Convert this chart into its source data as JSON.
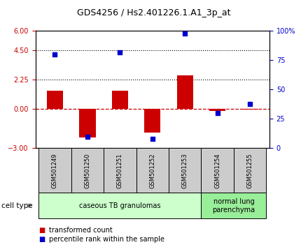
{
  "title": "GDS4256 / Hs2.401226.1.A1_3p_at",
  "samples": [
    "GSM501249",
    "GSM501250",
    "GSM501251",
    "GSM501252",
    "GSM501253",
    "GSM501254",
    "GSM501255"
  ],
  "transformed_counts": [
    1.4,
    -2.2,
    1.4,
    -1.8,
    2.6,
    -0.15,
    -0.05
  ],
  "percentile_ranks": [
    80,
    10,
    82,
    8,
    98,
    30,
    38
  ],
  "ylim_left": [
    -3,
    6
  ],
  "ylim_right": [
    0,
    100
  ],
  "yticks_left": [
    -3,
    0,
    2.25,
    4.5,
    6
  ],
  "yticks_right": [
    0,
    25,
    50,
    75,
    100
  ],
  "hlines_dotted": [
    2.25,
    4.5
  ],
  "hline_dashed_zero": 0,
  "bar_color": "#cc0000",
  "dot_color": "#0000cc",
  "zero_line_color": "#cc0000",
  "cell_type_groups": [
    {
      "label": "caseous TB granulomas",
      "indices": [
        0,
        1,
        2,
        3,
        4
      ],
      "color": "#ccffcc"
    },
    {
      "label": "normal lung\nparenchyma",
      "indices": [
        5,
        6
      ],
      "color": "#99ee99"
    }
  ],
  "legend_bar_label": "transformed count",
  "legend_dot_label": "percentile rank within the sample",
  "cell_type_label": "cell type",
  "plot_bg_color": "#ffffff",
  "tick_label_color_left": "#cc0000",
  "tick_label_color_right": "#0000cc",
  "bar_width": 0.5,
  "sample_box_color": "#cccccc",
  "sample_box_edge": "#000000"
}
